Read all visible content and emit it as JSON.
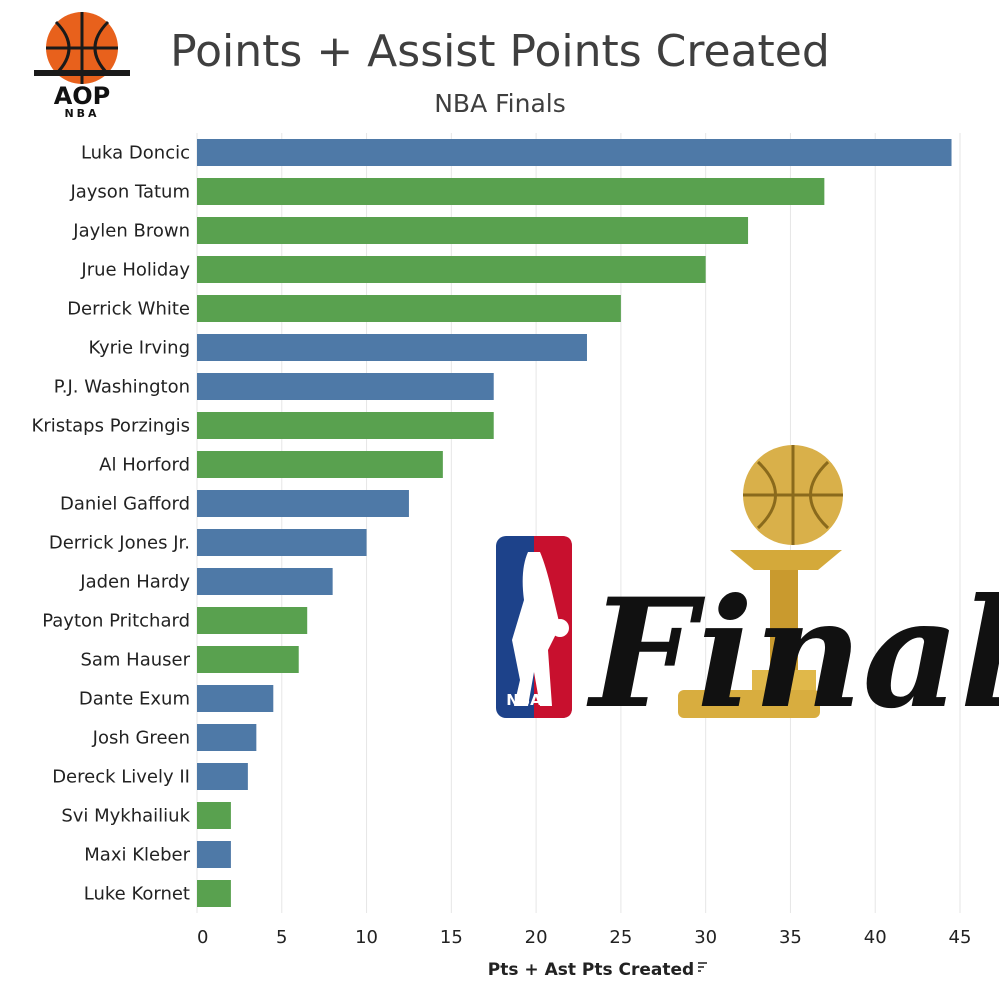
{
  "brand": {
    "logo_primary": "AOP",
    "logo_secondary": "NBA"
  },
  "emblem": {
    "league": "NBA",
    "word": "Finals"
  },
  "chart_data": {
    "type": "bar",
    "orientation": "horizontal",
    "title": "Points + Assist Points Created",
    "subtitle": "NBA Finals",
    "xlabel": "Pts + Ast Pts Created",
    "ylabel": "",
    "xlim": [
      0,
      47
    ],
    "xticks": [
      0,
      5,
      10,
      15,
      20,
      25,
      30,
      35,
      40,
      45
    ],
    "grid": true,
    "legend": "none",
    "colors": {
      "blue": "#4e79a7",
      "green": "#59a14f"
    },
    "categories": [
      "Luka Doncic",
      "Jayson Tatum",
      "Jaylen Brown",
      "Jrue Holiday",
      "Derrick White",
      "Kyrie Irving",
      "P.J. Washington",
      "Kristaps Porzingis",
      "Al Horford",
      "Daniel Gafford",
      "Derrick Jones Jr.",
      "Jaden Hardy",
      "Payton Pritchard",
      "Sam Hauser",
      "Dante Exum",
      "Josh Green",
      "Dereck Lively II",
      "Svi Mykhailiuk",
      "Maxi Kleber",
      "Luke Kornet"
    ],
    "values": [
      44.5,
      37,
      32.5,
      30,
      25,
      23,
      17.5,
      17.5,
      14.5,
      12.5,
      10,
      8,
      6.5,
      6,
      4.5,
      3.5,
      3,
      2,
      2,
      2
    ],
    "bar_colors": [
      "blue",
      "green",
      "green",
      "green",
      "green",
      "blue",
      "blue",
      "green",
      "green",
      "blue",
      "blue",
      "blue",
      "green",
      "green",
      "blue",
      "blue",
      "blue",
      "green",
      "blue",
      "green"
    ]
  }
}
